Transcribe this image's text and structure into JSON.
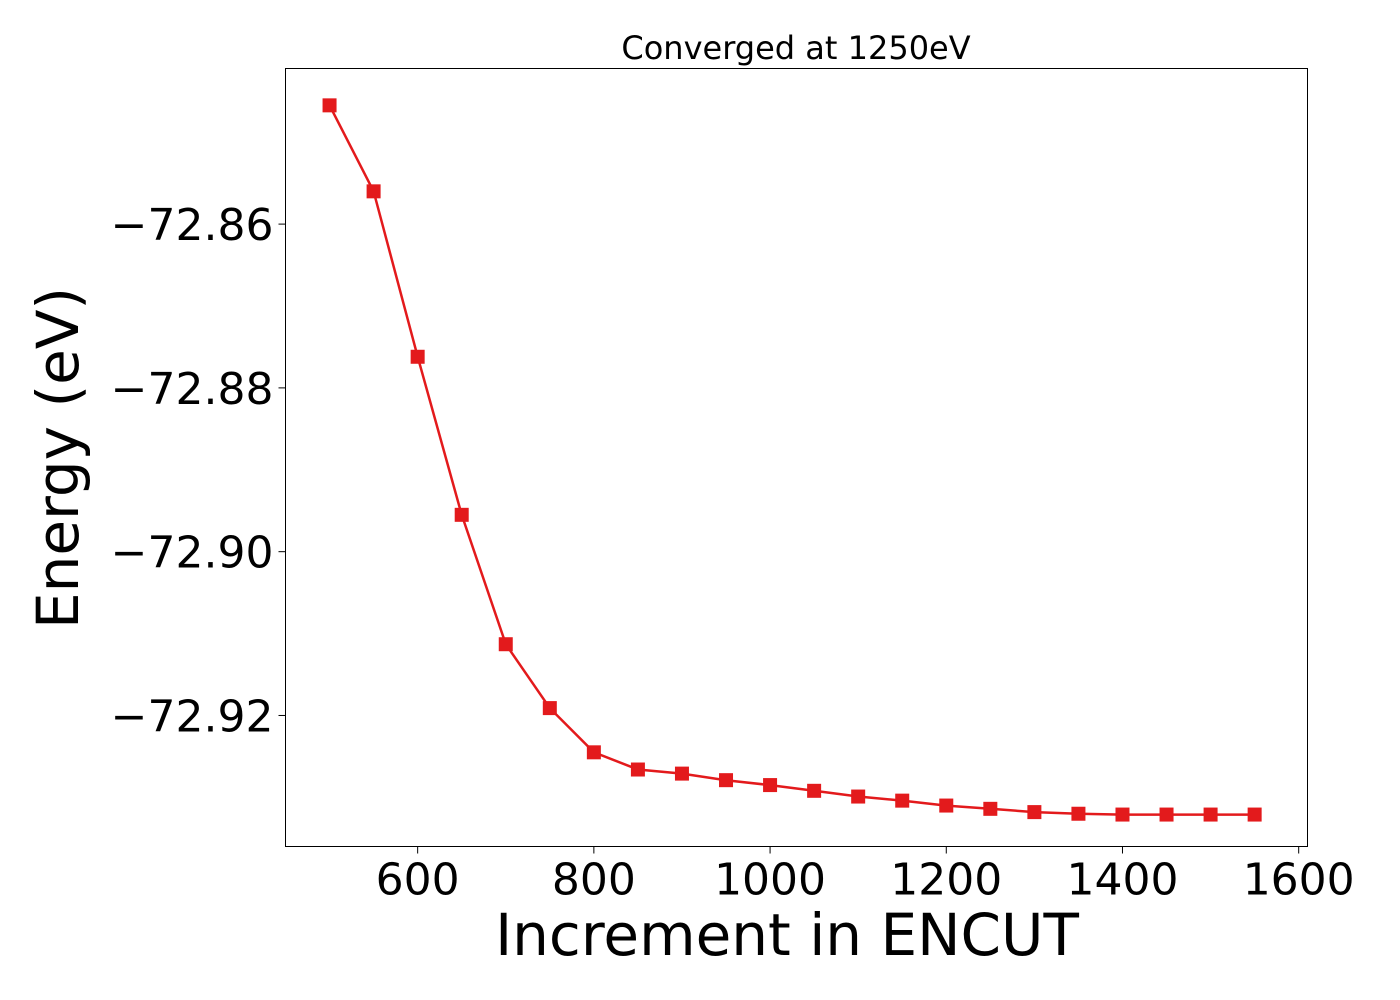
{
  "chart_data": {
    "type": "line",
    "title": "Converged at 1250eV",
    "xlabel": "Increment in ENCUT",
    "ylabel": "Energy (eV)",
    "xlim": [
      450,
      1610
    ],
    "ylim": [
      -72.936,
      -72.841
    ],
    "x_ticks": [
      600,
      800,
      1000,
      1200,
      1400,
      1600
    ],
    "x_tick_labels": [
      "600",
      "800",
      "1000",
      "1200",
      "1400",
      "1600"
    ],
    "y_ticks": [
      -72.86,
      -72.88,
      -72.9,
      -72.92
    ],
    "y_tick_labels": [
      "−72.86",
      "−72.88",
      "−72.90",
      "−72.92"
    ],
    "grid": false,
    "series": [
      {
        "color": "#e31a1c",
        "marker": "square",
        "x": [
          500,
          550,
          600,
          650,
          700,
          750,
          800,
          850,
          900,
          950,
          1000,
          1050,
          1100,
          1150,
          1200,
          1250,
          1300,
          1350,
          1400,
          1450,
          1500,
          1550
        ],
        "y": [
          -72.8455,
          -72.856,
          -72.8762,
          -72.8955,
          -72.9113,
          -72.9191,
          -72.9245,
          -72.9266,
          -72.9271,
          -72.9279,
          -72.9285,
          -72.9292,
          -72.9299,
          -72.9304,
          -72.931,
          -72.9314,
          -72.9318,
          -72.932,
          -72.9321,
          -72.9321,
          -72.9321,
          -72.9321
        ]
      }
    ]
  }
}
